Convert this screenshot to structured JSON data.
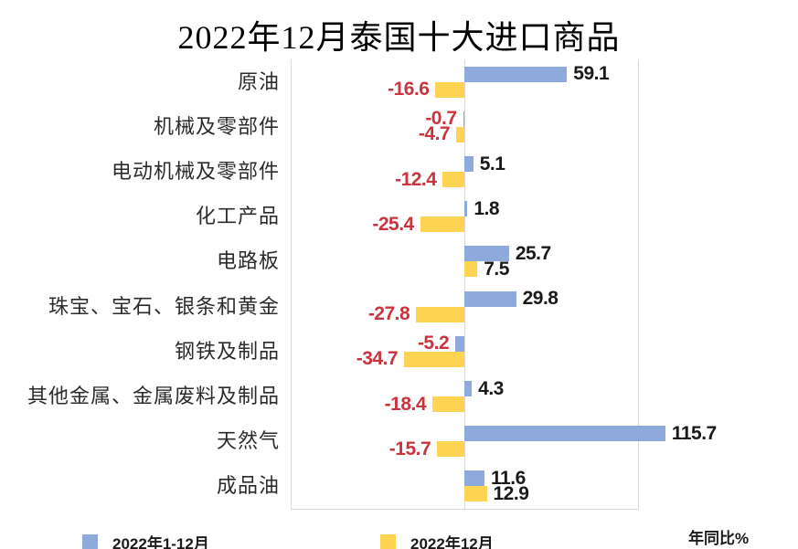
{
  "title": "2022年12月泰国十大进口商品",
  "axis_note": "年同比%",
  "legend": [
    {
      "label": "2022年1-12月",
      "color": "#8EA9DB"
    },
    {
      "label": "2022年12月",
      "color": "#FFD452"
    }
  ],
  "colors": {
    "bar_blue": "#8EA9DB",
    "bar_yellow": "#FFD452",
    "value_positive": "#1a1a1a",
    "value_negative": "#C9353D",
    "gridline": "#d9d9d9",
    "title_text": "#000000"
  },
  "chart_data": {
    "type": "bar",
    "orientation": "horizontal",
    "title": "2022年12月泰国十大进口商品",
    "xlabel": "年同比%",
    "ylabel": "",
    "xlim": [
      -100,
      100
    ],
    "grid": false,
    "legend_position": "bottom",
    "categories": [
      "原油",
      "机械及零部件",
      "电动机械及零部件",
      "化工产品",
      "电路板",
      "珠宝、宝石、银条和黄金",
      "钢铁及制品",
      "其他金属、金属废料及制品",
      "天然气",
      "成品油"
    ],
    "series": [
      {
        "name": "2022年1-12月",
        "color": "#8EA9DB",
        "values": [
          59.1,
          -0.7,
          5.1,
          1.8,
          25.7,
          29.8,
          -5.2,
          4.3,
          115.7,
          11.6
        ]
      },
      {
        "name": "2022年12月",
        "color": "#FFD452",
        "values": [
          -16.6,
          -4.7,
          -12.4,
          -25.4,
          7.5,
          -27.8,
          -34.7,
          -18.4,
          -15.7,
          12.9
        ]
      }
    ]
  }
}
